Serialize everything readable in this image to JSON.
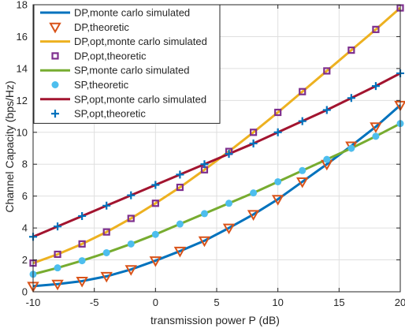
{
  "chart_data": {
    "type": "line",
    "title": "",
    "xlabel": "transmission power P (dB)",
    "ylabel": "Channel Capacity (bps/Hz)",
    "xlim": [
      -10,
      20
    ],
    "ylim": [
      0,
      18
    ],
    "xticks": [
      -10,
      -5,
      0,
      5,
      10,
      15,
      20
    ],
    "yticks": [
      0,
      2,
      4,
      6,
      8,
      10,
      12,
      14,
      16,
      18
    ],
    "grid": true,
    "legend_position": "top-left",
    "x": [
      -10,
      -8,
      -6,
      -4,
      -2,
      0,
      2,
      4,
      6,
      8,
      10,
      12,
      14,
      16,
      18,
      20
    ],
    "series": [
      {
        "name": "DP,monte carlo simulated",
        "style": "line",
        "color": "#0072BD",
        "values": [
          0.35,
          0.48,
          0.67,
          0.97,
          1.4,
          1.95,
          2.55,
          3.2,
          4.0,
          4.85,
          5.8,
          6.9,
          8.0,
          9.15,
          10.35,
          11.7
        ]
      },
      {
        "name": "DP,theoretic",
        "style": "marker",
        "marker": "triangle-down",
        "color": "#D95319",
        "values": [
          0.35,
          0.48,
          0.67,
          0.97,
          1.4,
          1.95,
          2.55,
          3.2,
          4.0,
          4.85,
          5.8,
          6.9,
          8.0,
          9.15,
          10.35,
          11.7
        ]
      },
      {
        "name": "DP,opt,monte carlo simulated",
        "style": "line",
        "color": "#EDB120",
        "values": [
          1.8,
          2.35,
          3.0,
          3.75,
          4.6,
          5.55,
          6.55,
          7.65,
          8.8,
          10.0,
          11.25,
          12.55,
          13.85,
          15.15,
          16.45,
          17.8
        ]
      },
      {
        "name": "DP,opt,theoretic",
        "style": "marker",
        "marker": "square",
        "color": "#7E2F8E",
        "values": [
          1.8,
          2.35,
          3.0,
          3.75,
          4.6,
          5.55,
          6.55,
          7.65,
          8.8,
          10.0,
          11.25,
          12.55,
          13.85,
          15.15,
          16.45,
          17.8
        ]
      },
      {
        "name": "SP,monte carlo simulated",
        "style": "line",
        "color": "#77AC30",
        "values": [
          1.1,
          1.5,
          1.95,
          2.45,
          3.0,
          3.6,
          4.25,
          4.9,
          5.55,
          6.2,
          6.9,
          7.6,
          8.3,
          9.0,
          9.75,
          10.55
        ]
      },
      {
        "name": "SP,theoretic",
        "style": "marker",
        "marker": "circle",
        "color": "#4DBEEE",
        "values": [
          1.1,
          1.5,
          1.95,
          2.45,
          3.0,
          3.6,
          4.25,
          4.9,
          5.55,
          6.2,
          6.9,
          7.6,
          8.3,
          9.0,
          9.75,
          10.55
        ]
      },
      {
        "name": "SP,opt,monte carlo simulated",
        "style": "line",
        "color": "#A2142F",
        "values": [
          3.45,
          4.1,
          4.75,
          5.4,
          6.05,
          6.7,
          7.35,
          8.0,
          8.65,
          9.3,
          10.0,
          10.7,
          11.4,
          12.15,
          12.9,
          13.7
        ]
      },
      {
        "name": "SP,opt,theoretic",
        "style": "marker",
        "marker": "plus",
        "color": "#0072BD",
        "values": [
          3.45,
          4.1,
          4.75,
          5.4,
          6.05,
          6.7,
          7.35,
          8.0,
          8.65,
          9.3,
          10.0,
          10.7,
          11.4,
          12.15,
          12.9,
          13.7
        ]
      }
    ]
  }
}
